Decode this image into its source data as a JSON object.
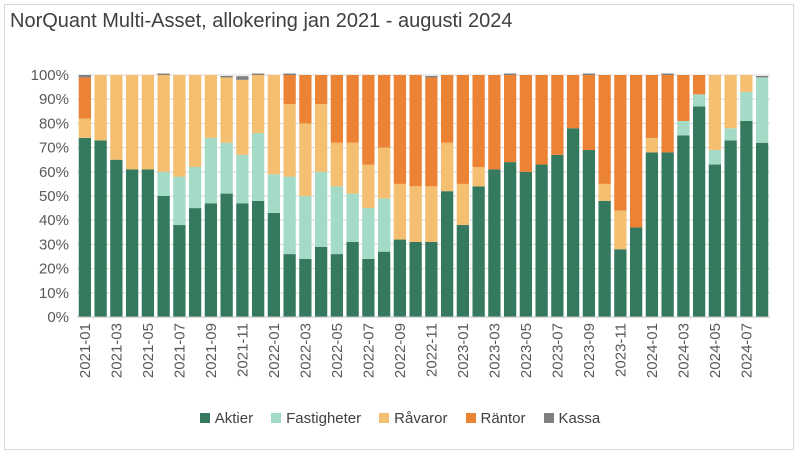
{
  "chart_data": {
    "type": "bar",
    "stacked": true,
    "title": "NorQuant Multi-Asset, allokering jan 2021 - augusti 2024",
    "xlabel": "",
    "ylabel": "",
    "ylim": [
      0,
      100
    ],
    "yticks": [
      "0%",
      "10%",
      "20%",
      "30%",
      "40%",
      "50%",
      "60%",
      "70%",
      "80%",
      "90%",
      "100%"
    ],
    "grid": true,
    "legend_position": "bottom",
    "categories": [
      "2021-01",
      "2021-02",
      "2021-03",
      "2021-04",
      "2021-05",
      "2021-06",
      "2021-07",
      "2021-08",
      "2021-09",
      "2021-10",
      "2021-11",
      "2021-12",
      "2022-01",
      "2022-02",
      "2022-03",
      "2022-04",
      "2022-05",
      "2022-06",
      "2022-07",
      "2022-08",
      "2022-09",
      "2022-10",
      "2022-11",
      "2022-12",
      "2023-01",
      "2023-02",
      "2023-03",
      "2023-04",
      "2023-05",
      "2023-06",
      "2023-07",
      "2023-08",
      "2023-09",
      "2023-10",
      "2023-11",
      "2023-12",
      "2024-01",
      "2024-02",
      "2024-03",
      "2024-04",
      "2024-05",
      "2024-06",
      "2024-07",
      "2024-08"
    ],
    "xtick_labels": [
      "2021-01",
      "2021-03",
      "2021-05",
      "2021-07",
      "2021-09",
      "2021-11",
      "2022-01",
      "2022-03",
      "2022-05",
      "2022-07",
      "2022-09",
      "2022-11",
      "2023-01",
      "2023-03",
      "2023-05",
      "2023-07",
      "2023-09",
      "2023-11",
      "2024-01",
      "2024-03",
      "2024-05",
      "2024-07"
    ],
    "series": [
      {
        "name": "Aktier",
        "color": "#357a5f",
        "values": [
          74,
          73,
          65,
          61,
          61,
          50,
          38,
          45,
          47,
          51,
          47,
          48,
          43,
          26,
          24,
          29,
          26,
          31,
          24,
          27,
          32,
          31,
          31,
          52,
          38,
          54,
          61,
          64,
          60,
          63,
          67,
          78,
          69,
          48,
          28,
          37,
          68,
          68,
          75,
          87,
          63,
          73,
          81,
          72
        ]
      },
      {
        "name": "Fastigheter",
        "color": "#a3dbc7",
        "values": [
          0,
          0,
          0,
          0,
          0,
          10,
          20,
          17,
          27,
          21,
          20,
          28,
          16,
          32,
          26,
          31,
          28,
          20,
          21,
          22,
          0,
          0,
          0,
          0,
          0,
          0,
          0,
          0,
          0,
          0,
          0,
          0,
          0,
          0,
          0,
          0,
          0,
          0,
          6,
          5,
          6,
          5,
          12,
          27
        ]
      },
      {
        "name": "Råvaror",
        "color": "#f4bf71",
        "values": [
          8,
          27,
          35,
          39,
          39,
          40,
          42,
          38,
          26,
          27,
          31,
          24,
          41,
          30,
          30,
          28,
          18,
          21,
          18,
          21,
          23,
          23,
          23,
          20,
          17,
          8,
          0,
          0,
          0,
          0,
          0,
          0,
          0,
          7,
          16,
          0,
          6,
          0,
          0,
          0,
          31,
          22,
          7,
          0
        ]
      },
      {
        "name": "Räntor",
        "color": "#ec8234",
        "values": [
          17,
          0,
          0,
          0,
          0,
          0,
          0,
          0,
          0,
          0,
          0,
          0,
          0,
          12,
          20,
          12,
          28,
          28,
          37,
          30,
          45,
          46,
          45,
          28,
          45,
          38,
          39,
          36,
          40,
          37,
          33,
          22,
          31,
          45,
          56,
          63,
          26,
          32,
          19,
          8,
          0,
          0,
          0,
          0
        ]
      },
      {
        "name": "Kassa",
        "color": "#7f7f7f",
        "values": [
          1,
          0,
          0,
          0,
          0,
          0.6,
          0,
          0,
          0,
          0.6,
          1.5,
          0.6,
          0,
          0.6,
          0,
          0,
          0,
          0,
          0,
          0,
          0,
          0,
          0.6,
          0,
          0,
          0,
          0,
          0.6,
          0,
          0,
          0,
          0,
          0.6,
          0,
          0,
          0,
          0,
          0.6,
          0,
          0,
          0,
          0,
          0,
          0.6
        ]
      }
    ]
  }
}
